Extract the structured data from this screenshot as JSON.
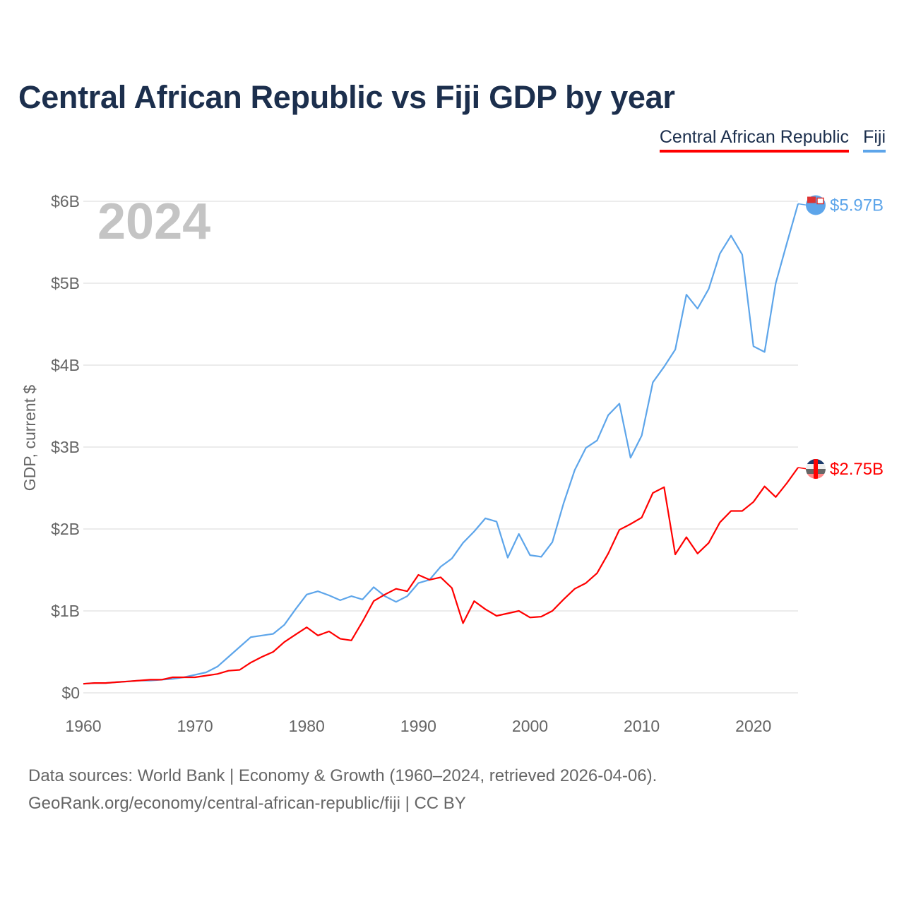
{
  "chart_data": {
    "type": "line",
    "title": "Central African Republic vs Fiji GDP by year",
    "ylabel": "GDP, current $",
    "xlabel": "",
    "year_label": "2024",
    "xlim": [
      1960,
      2024
    ],
    "ylim": [
      0,
      6
    ],
    "x_ticks": [
      1960,
      1970,
      1980,
      1990,
      2000,
      2010,
      2020
    ],
    "y_ticks": [
      0,
      1,
      2,
      3,
      4,
      5,
      6
    ],
    "y_tick_labels": [
      "$0",
      "$1B",
      "$2B",
      "$3B",
      "$4B",
      "$5B",
      "$6B"
    ],
    "grid": true,
    "legend_position": "top-right",
    "x": [
      1960,
      1961,
      1962,
      1963,
      1964,
      1965,
      1966,
      1967,
      1968,
      1969,
      1970,
      1971,
      1972,
      1973,
      1974,
      1975,
      1976,
      1977,
      1978,
      1979,
      1980,
      1981,
      1982,
      1983,
      1984,
      1985,
      1986,
      1987,
      1988,
      1989,
      1990,
      1991,
      1992,
      1993,
      1994,
      1995,
      1996,
      1997,
      1998,
      1999,
      2000,
      2001,
      2002,
      2003,
      2004,
      2005,
      2006,
      2007,
      2008,
      2009,
      2010,
      2011,
      2012,
      2013,
      2014,
      2015,
      2016,
      2017,
      2018,
      2019,
      2020,
      2021,
      2022,
      2023,
      2024
    ],
    "series": [
      {
        "name": "Central African Republic",
        "color": "#ff0000",
        "end_label": "$2.75B",
        "values": [
          0.11,
          0.12,
          0.12,
          0.13,
          0.14,
          0.15,
          0.16,
          0.16,
          0.19,
          0.19,
          0.19,
          0.21,
          0.23,
          0.27,
          0.28,
          0.37,
          0.44,
          0.5,
          0.62,
          0.71,
          0.8,
          0.7,
          0.75,
          0.66,
          0.64,
          0.87,
          1.12,
          1.2,
          1.27,
          1.24,
          1.44,
          1.38,
          1.41,
          1.28,
          0.85,
          1.12,
          1.02,
          0.94,
          0.97,
          1.0,
          0.92,
          0.93,
          1.0,
          1.14,
          1.27,
          1.34,
          1.46,
          1.7,
          1.99,
          2.06,
          2.14,
          2.44,
          2.51,
          1.69,
          1.9,
          1.7,
          1.83,
          2.08,
          2.22,
          2.22,
          2.33,
          2.52,
          2.39,
          2.56,
          2.75
        ]
      },
      {
        "name": "Fiji",
        "color": "#5da5ea",
        "end_label": "$5.97B",
        "values": [
          0.11,
          0.12,
          0.12,
          0.13,
          0.14,
          0.15,
          0.15,
          0.16,
          0.17,
          0.19,
          0.22,
          0.25,
          0.32,
          0.44,
          0.56,
          0.68,
          0.7,
          0.72,
          0.83,
          1.02,
          1.2,
          1.24,
          1.19,
          1.13,
          1.18,
          1.14,
          1.29,
          1.18,
          1.11,
          1.18,
          1.34,
          1.38,
          1.54,
          1.64,
          1.83,
          1.97,
          2.13,
          2.09,
          1.65,
          1.94,
          1.68,
          1.66,
          1.84,
          2.31,
          2.72,
          2.99,
          3.08,
          3.39,
          3.53,
          2.87,
          3.14,
          3.79,
          3.98,
          4.19,
          4.86,
          4.69,
          4.93,
          5.36,
          5.58,
          5.35,
          4.23,
          4.16,
          5.0,
          5.49,
          5.97
        ]
      }
    ]
  },
  "footer": {
    "line1": "Data sources: World Bank | Economy & Growth (1960–2024, retrieved 2026-04-06).",
    "line2": "GeoRank.org/economy/central-african-republic/fiji | CC BY"
  }
}
